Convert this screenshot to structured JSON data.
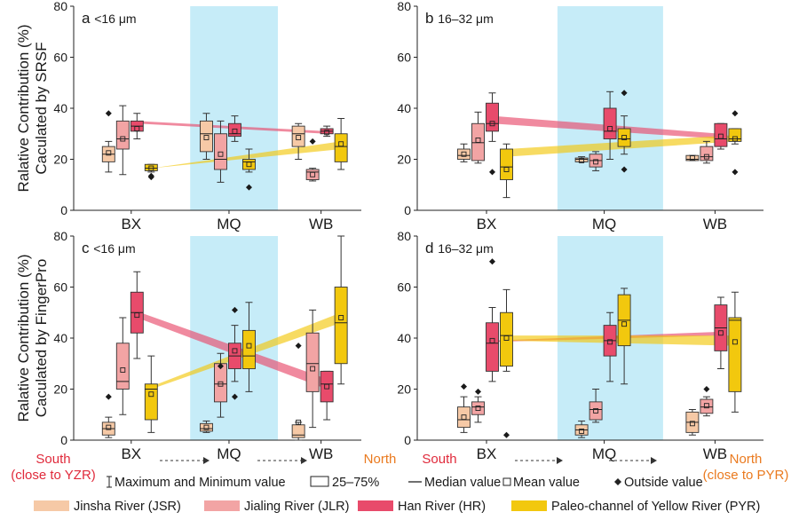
{
  "chart_data": {
    "type": "box",
    "y_axis_label_top": "Ralative Contribution (%)\nCaculated by SRSF",
    "y_axis_label_bottom": "Ralative Contribution (%)\nCaculated by FingerPro",
    "ylim": [
      0,
      80
    ],
    "yticks": [
      "0",
      "20",
      "40",
      "60",
      "80"
    ],
    "sites": [
      "BX",
      "MQ",
      "WB"
    ],
    "highlight_site": "MQ",
    "colors": {
      "JSR": "#f6c9a6",
      "JLR": "#f2a4a4",
      "HR": "#e84b6b",
      "PYR": "#f2c80e",
      "highlight": "#c6ecf8"
    },
    "series_order": [
      "JSR",
      "JLR",
      "HR",
      "PYR"
    ],
    "panels": [
      {
        "tag": "a",
        "size": "<16 μm",
        "boxes": {
          "BX": {
            "JSR": {
              "min": 15,
              "q1": 19,
              "med": 22,
              "q3": 25,
              "max": 27,
              "mean": 22.5,
              "out": [
                38
              ]
            },
            "JLR": {
              "min": 14,
              "q1": 24,
              "med": 28,
              "q3": 35,
              "max": 41,
              "mean": 28,
              "out": []
            },
            "HR": {
              "min": 28,
              "q1": 31,
              "med": 33,
              "q3": 35,
              "max": 38,
              "mean": 32,
              "out": []
            },
            "PYR": {
              "min": 15,
              "q1": 15.5,
              "med": 16.5,
              "q3": 18,
              "max": 18,
              "mean": 16.5,
              "out": [
                13,
                13.5
              ]
            }
          },
          "MQ": {
            "JSR": {
              "min": 20,
              "q1": 23,
              "med": 30,
              "q3": 35,
              "max": 38,
              "mean": 28.5,
              "out": []
            },
            "JLR": {
              "min": 11,
              "q1": 16,
              "med": 20,
              "q3": 30,
              "max": 35,
              "mean": 22,
              "out": []
            },
            "HR": {
              "min": 27,
              "q1": 29,
              "med": 30,
              "q3": 34,
              "max": 37,
              "mean": 31,
              "out": []
            },
            "PYR": {
              "min": 15,
              "q1": 16,
              "med": 19,
              "q3": 20,
              "max": 24,
              "mean": 18,
              "out": [
                9
              ]
            }
          },
          "WB": {
            "JSR": {
              "min": 20,
              "q1": 25,
              "med": 30,
              "q3": 33,
              "max": 34,
              "mean": 28.5,
              "out": []
            },
            "JLR": {
              "min": 11.5,
              "q1": 12,
              "med": 15,
              "q3": 16,
              "max": 16.5,
              "mean": 14,
              "out": [
                27
              ]
            },
            "HR": {
              "min": 29,
              "q1": 30,
              "med": 31,
              "q3": 32,
              "max": 33,
              "mean": 30.5,
              "out": []
            },
            "PYR": {
              "min": 16,
              "q1": 19,
              "med": 25,
              "q3": 30,
              "max": 36,
              "mean": 26,
              "out": []
            }
          }
        },
        "trends": [
          {
            "series": "HR",
            "from": [
              35,
              34
            ],
            "to": [
              31,
              30
            ]
          },
          {
            "series": "PYR",
            "from": [
              16.5,
              16.5
            ],
            "to": [
              27,
              24
            ]
          }
        ]
      },
      {
        "tag": "b",
        "size": "16–32 μm",
        "boxes": {
          "BX": {
            "JSR": {
              "min": 19,
              "q1": 20,
              "med": 21.5,
              "q3": 24,
              "max": 26,
              "mean": 22,
              "out": []
            },
            "JLR": {
              "min": 18.5,
              "q1": 19.5,
              "med": 26.5,
              "q3": 34,
              "max": 38.5,
              "mean": 27.5,
              "out": []
            },
            "HR": {
              "min": 27,
              "q1": 31,
              "med": 34,
              "q3": 42,
              "max": 46,
              "mean": 34,
              "out": [
                15
              ]
            },
            "PYR": {
              "min": 5,
              "q1": 12,
              "med": 17,
              "q3": 24,
              "max": 26,
              "mean": 16,
              "out": []
            }
          },
          "MQ": {
            "JSR": {
              "min": 19,
              "q1": 19,
              "med": 20,
              "q3": 20.5,
              "max": 21,
              "mean": 19.5,
              "out": []
            },
            "JLR": {
              "min": 15.5,
              "q1": 17,
              "med": 19.5,
              "q3": 22,
              "max": 23,
              "mean": 19,
              "out": []
            },
            "HR": {
              "min": 20,
              "q1": 28,
              "med": 31,
              "q3": 40,
              "max": 46.5,
              "mean": 32,
              "out": []
            },
            "PYR": {
              "min": 22,
              "q1": 25,
              "med": 28,
              "q3": 32,
              "max": 37,
              "mean": 28.5,
              "out": [
                46,
                16
              ]
            }
          },
          "WB": {
            "JSR": {
              "min": 19.5,
              "q1": 19.5,
              "med": 20,
              "q3": 21.5,
              "max": 21.5,
              "mean": 20.5,
              "out": []
            },
            "JLR": {
              "min": 18.5,
              "q1": 19.5,
              "med": 21,
              "q3": 25,
              "max": 27,
              "mean": 21,
              "out": []
            },
            "HR": {
              "min": 24,
              "q1": 25,
              "med": 28,
              "q3": 34,
              "max": 34,
              "mean": 29,
              "out": []
            },
            "PYR": {
              "min": 26,
              "q1": 27,
              "med": 28,
              "q3": 32,
              "max": 32,
              "mean": 28,
              "out": [
                38,
                15
              ]
            }
          }
        },
        "trends": [
          {
            "series": "HR",
            "from": [
              37,
              34
            ],
            "to": [
              30,
              28
            ]
          },
          {
            "series": "PYR",
            "from": [
              24,
              21
            ],
            "to": [
              29.5,
              27
            ]
          }
        ]
      },
      {
        "tag": "c",
        "size": "<16 μm",
        "boxes": {
          "BX": {
            "JSR": {
              "min": 1,
              "q1": 2,
              "med": 4.5,
              "q3": 7,
              "max": 9,
              "mean": 5,
              "out": [
                17
              ]
            },
            "JLR": {
              "min": 10,
              "q1": 20,
              "med": 23,
              "q3": 38,
              "max": 48,
              "mean": 27.5,
              "out": []
            },
            "HR": {
              "min": 32,
              "q1": 42,
              "med": 50,
              "q3": 58,
              "max": 66,
              "mean": 49,
              "out": []
            },
            "PYR": {
              "min": 3,
              "q1": 8,
              "med": 20,
              "q3": 22,
              "max": 33,
              "mean": 18,
              "out": []
            }
          },
          "MQ": {
            "JSR": {
              "min": 3,
              "q1": 3.5,
              "med": 4.5,
              "q3": 6.5,
              "max": 7.5,
              "mean": 5,
              "out": []
            },
            "JLR": {
              "min": 9,
              "q1": 15,
              "med": 22,
              "q3": 30,
              "max": 34,
              "mean": 22,
              "out": [
                29
              ]
            },
            "HR": {
              "min": 23,
              "q1": 28,
              "med": 33,
              "q3": 38,
              "max": 45,
              "mean": 35,
              "out": [
                51,
                17
              ]
            },
            "PYR": {
              "min": 19,
              "q1": 28,
              "med": 33,
              "q3": 43,
              "max": 54,
              "mean": 37,
              "out": []
            }
          },
          "WB": {
            "JSR": {
              "min": 0,
              "q1": 1,
              "med": 2,
              "q3": 6,
              "max": 7,
              "mean": 7,
              "out": [
                37
              ]
            },
            "JLR": {
              "min": 5,
              "q1": 19,
              "med": 30,
              "q3": 42,
              "max": 51,
              "mean": 28,
              "out": []
            },
            "HR": {
              "min": 8,
              "q1": 15,
              "med": 22,
              "q3": 27,
              "max": 27,
              "mean": 21,
              "out": []
            },
            "PYR": {
              "min": 22,
              "q1": 30,
              "med": 46,
              "q3": 60,
              "max": 80,
              "mean": 48,
              "out": []
            }
          }
        },
        "trends": [
          {
            "series": "HR",
            "from": [
              50.5,
              48
            ],
            "to": [
              24,
              20
            ]
          },
          {
            "series": "PYR",
            "from": [
              21,
              20
            ],
            "to": [
              50,
              46
            ]
          }
        ]
      },
      {
        "tag": "d",
        "size": "16–32 μm",
        "boxes": {
          "BX": {
            "JSR": {
              "min": 3,
              "q1": 5,
              "med": 8,
              "q3": 13,
              "max": 17,
              "mean": 9,
              "out": [
                21
              ]
            },
            "JLR": {
              "min": 7,
              "q1": 10,
              "med": 13,
              "q3": 15,
              "max": 17,
              "mean": 12.5,
              "out": [
                19
              ]
            },
            "HR": {
              "min": 23,
              "q1": 27,
              "med": 38,
              "q3": 46,
              "max": 52,
              "mean": 39,
              "out": [
                70
              ]
            },
            "PYR": {
              "min": 27,
              "q1": 29,
              "med": 41,
              "q3": 50,
              "max": 59,
              "mean": 40,
              "out": [
                2
              ]
            }
          },
          "MQ": {
            "JSR": {
              "min": 1,
              "q1": 2,
              "med": 4,
              "q3": 6,
              "max": 7.5,
              "mean": 3.5,
              "out": []
            },
            "JLR": {
              "min": 7,
              "q1": 8,
              "med": 12,
              "q3": 15,
              "max": 20,
              "mean": 11.5,
              "out": []
            },
            "HR": {
              "min": 23,
              "q1": 33,
              "med": 39,
              "q3": 45,
              "max": 50,
              "mean": 38.5,
              "out": []
            },
            "PYR": {
              "min": 22,
              "q1": 37,
              "med": 47,
              "q3": 57,
              "max": 59.5,
              "mean": 45.5,
              "out": []
            }
          },
          "WB": {
            "JSR": {
              "min": 2,
              "q1": 3,
              "med": 7,
              "q3": 11,
              "max": 12,
              "mean": 6.5,
              "out": []
            },
            "JLR": {
              "min": 9.5,
              "q1": 10.5,
              "med": 13,
              "q3": 16,
              "max": 17,
              "mean": 13.5,
              "out": [
                20
              ]
            },
            "HR": {
              "min": 28,
              "q1": 35,
              "med": 44,
              "q3": 53,
              "max": 56,
              "mean": 42,
              "out": []
            },
            "PYR": {
              "min": 11,
              "q1": 19,
              "med": 47,
              "q3": 48,
              "max": 58,
              "mean": 38.5,
              "out": []
            }
          }
        },
        "trends": [
          {
            "series": "HR",
            "from": [
              39,
              38.5
            ],
            "to": [
              42.5,
              41
            ]
          },
          {
            "series": "PYR",
            "from": [
              41,
              39
            ],
            "to": [
              41,
              37
            ]
          }
        ]
      }
    ],
    "direction": {
      "south_left": "South\n(close to YZR)",
      "north_left": "North",
      "south_right": "South",
      "north_right": "North\n(close to PYR)",
      "arrow": "------>"
    },
    "stats_legend": [
      {
        "icon": "whisker-icon",
        "label": "Maximum and Minimum value"
      },
      {
        "icon": "box-icon",
        "label": "25–75%"
      },
      {
        "icon": "median-line-icon",
        "label": "Median value"
      },
      {
        "icon": "mean-square-icon",
        "label": "Mean value"
      },
      {
        "icon": "diamond-icon",
        "label": "Outside value"
      }
    ],
    "series_legend": [
      {
        "key": "JSR",
        "label": "Jinsha River (JSR)"
      },
      {
        "key": "JLR",
        "label": "Jialing River (JLR)"
      },
      {
        "key": "HR",
        "label": "Han River (HR)"
      },
      {
        "key": "PYR",
        "label": "Paleo-channel of Yellow River (PYR)"
      }
    ]
  }
}
